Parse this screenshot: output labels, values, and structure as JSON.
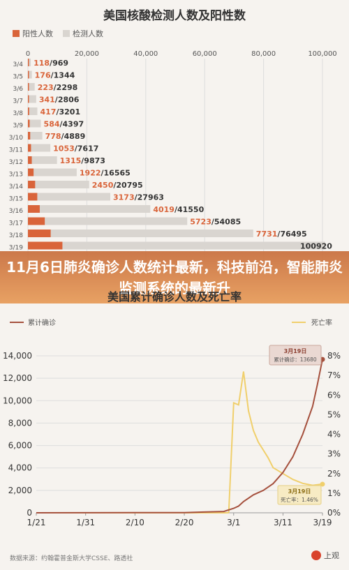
{
  "headline": "11月6日肺炎确诊人数统计最新，科技前沿，智能肺炎监测系统的最新升",
  "source": "数据来源：约翰霍普金斯大学CSSE、路透社",
  "logo": "上观",
  "colors": {
    "positive": "#d9643a",
    "tests": "#d9d5d0",
    "confirmed": "#a5503d",
    "death_rate": "#f0cf6b"
  },
  "chart_data": [
    {
      "type": "bar",
      "title": "美国核酸检测人数及阳性数",
      "legend": [
        "阳性人数",
        "检测人数"
      ],
      "x_ticks": [
        "0",
        "20,000",
        "40,000",
        "60,000",
        "80,000",
        "100,000"
      ],
      "xlim": [
        0,
        100000
      ],
      "categories": [
        "3/4",
        "3/5",
        "3/6",
        "3/7",
        "3/8",
        "3/9",
        "3/10",
        "3/11",
        "3/12",
        "3/13",
        "3/14",
        "3/15",
        "3/16",
        "3/17",
        "3/18",
        "3/19"
      ],
      "series": [
        {
          "name": "阳性人数",
          "values": [
            118,
            176,
            223,
            341,
            417,
            584,
            778,
            1053,
            1315,
            1922,
            2450,
            3173,
            4019,
            5723,
            7731,
            11711
          ]
        },
        {
          "name": "检测人数",
          "values": [
            969,
            1344,
            2298,
            2806,
            3201,
            4397,
            4889,
            7617,
            9873,
            16565,
            20795,
            27963,
            41550,
            54085,
            76495,
            100920
          ]
        }
      ],
      "labels": [
        "118/969",
        "176/1344",
        "223/2298",
        "341/2806",
        "417/3201",
        "584/4397",
        "778/4889",
        "1053/7617",
        "1315/9873",
        "1922/16565",
        "2450/20795",
        "3173/27963",
        "4019/41550",
        "5723/54085",
        "7731/76495",
        "100920"
      ]
    },
    {
      "type": "line",
      "title": "美国累计确诊人数及死亡率",
      "legend": [
        "累计确诊",
        "死亡率"
      ],
      "x_ticks": [
        "1/21",
        "1/31",
        "2/10",
        "2/20",
        "3/1",
        "3/11",
        "3/19"
      ],
      "y_ticks_left": [
        "0",
        "2,000",
        "4,000",
        "6,000",
        "8,000",
        "10,000",
        "12,000",
        "14,000"
      ],
      "y_ticks_right": [
        "0%",
        "1%",
        "2%",
        "3%",
        "4%",
        "5%",
        "6%",
        "7%",
        "8%"
      ],
      "ylim_left": [
        0,
        14000
      ],
      "ylim_right": [
        0,
        8
      ],
      "x_days": [
        0,
        10,
        20,
        30,
        34,
        38,
        40,
        41,
        42,
        44,
        46,
        48,
        50,
        52,
        54,
        56,
        57,
        58
      ],
      "confirmed": [
        1,
        8,
        12,
        15,
        70,
        120,
        400,
        600,
        1000,
        1600,
        2000,
        2600,
        3600,
        5000,
        7000,
        9500,
        11500,
        13680
      ],
      "death_rate_x": [
        39,
        40,
        41,
        42,
        43,
        44,
        45,
        46,
        47,
        48,
        50,
        52,
        54,
        56,
        58
      ],
      "death_rate": [
        0,
        5.6,
        5.5,
        7.2,
        5.2,
        4.2,
        3.6,
        3.2,
        2.8,
        2.3,
        2.0,
        1.7,
        1.5,
        1.4,
        1.46
      ],
      "annotations": [
        {
          "date": "3月19日",
          "text": "累计确诊：13680"
        },
        {
          "date": "3月19日",
          "text": "死亡率：1.46%"
        }
      ]
    }
  ]
}
